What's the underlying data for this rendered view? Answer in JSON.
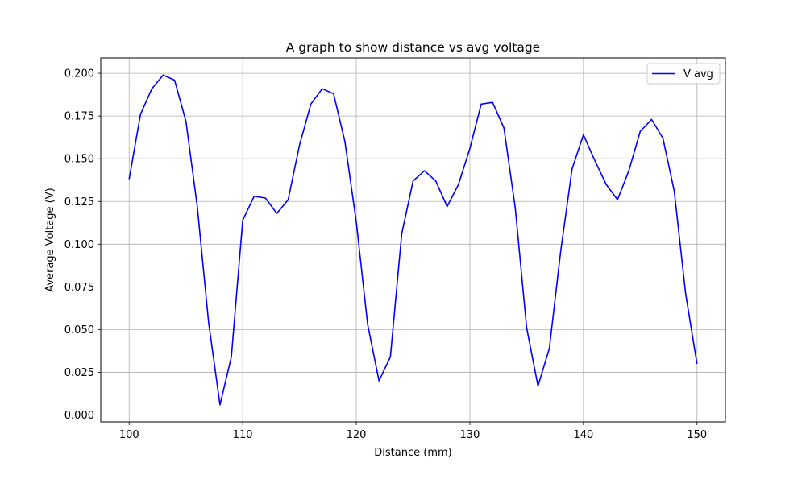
{
  "chart_data": {
    "type": "line",
    "title": "A graph to show distance vs avg voltage",
    "xlabel": "Distance (mm)",
    "ylabel": "Average Voltage (V)",
    "xlim": [
      97.5,
      152.5
    ],
    "ylim": [
      -0.004,
      0.209
    ],
    "x_ticks": [
      100,
      110,
      120,
      130,
      140,
      150
    ],
    "x_tick_labels": [
      "100",
      "110",
      "120",
      "130",
      "140",
      "150"
    ],
    "y_ticks": [
      0,
      0.025,
      0.05,
      0.075,
      0.1,
      0.125,
      0.15,
      0.175,
      0.2
    ],
    "y_tick_labels": [
      "0.000",
      "0.025",
      "0.050",
      "0.075",
      "0.100",
      "0.125",
      "0.150",
      "0.175",
      "0.200"
    ],
    "grid": true,
    "legend_position": "top-right",
    "series": [
      {
        "name": "V avg",
        "color": "#0000ff",
        "x": [
          100,
          101,
          102,
          103,
          104,
          105,
          106,
          107,
          108,
          109,
          110,
          111,
          112,
          113,
          114,
          115,
          116,
          117,
          118,
          119,
          120,
          121,
          122,
          123,
          124,
          125,
          126,
          127,
          128,
          129,
          130,
          131,
          132,
          133,
          134,
          135,
          136,
          137,
          138,
          139,
          140,
          141,
          142,
          143,
          144,
          145,
          146,
          147,
          148,
          149,
          150
        ],
        "y": [
          0.138,
          0.176,
          0.191,
          0.199,
          0.196,
          0.172,
          0.122,
          0.054,
          0.006,
          0.034,
          0.114,
          0.128,
          0.127,
          0.118,
          0.126,
          0.158,
          0.182,
          0.191,
          0.188,
          0.16,
          0.113,
          0.053,
          0.02,
          0.034,
          0.106,
          0.137,
          0.143,
          0.137,
          0.122,
          0.135,
          0.156,
          0.182,
          0.183,
          0.168,
          0.121,
          0.051,
          0.017,
          0.039,
          0.096,
          0.144,
          0.164,
          0.149,
          0.135,
          0.126,
          0.143,
          0.166,
          0.173,
          0.162,
          0.131,
          0.071,
          0.03
        ]
      }
    ]
  }
}
